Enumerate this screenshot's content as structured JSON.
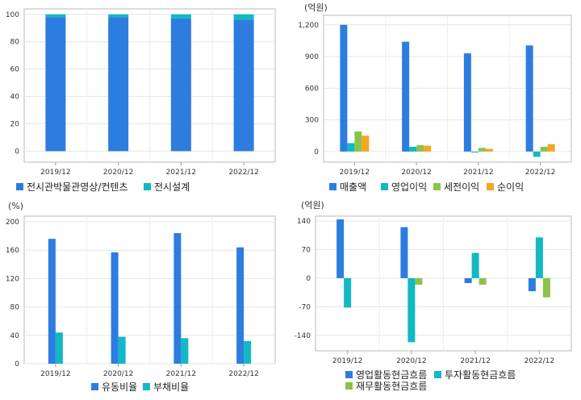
{
  "chart_data": [
    {
      "type": "bar",
      "stacked": true,
      "unit": "",
      "categories": [
        "2019/12",
        "2020/12",
        "2021/12",
        "2022/12"
      ],
      "yticks": [
        0,
        20,
        40,
        60,
        80,
        100
      ],
      "ylim": [
        -8,
        104
      ],
      "grid": true,
      "legend_position": "bottom",
      "series": [
        {
          "name": "전시관박물관영상/컨텐츠",
          "color": "#2d7de0",
          "values": [
            98,
            98,
            97,
            96
          ]
        },
        {
          "name": "전시설계",
          "color": "#12b8c4",
          "values": [
            2,
            2,
            3,
            4
          ]
        }
      ]
    },
    {
      "type": "bar",
      "unit": "(억원)",
      "categories": [
        "2019/12",
        "2020/12",
        "2021/12",
        "2022/12"
      ],
      "yticks": [
        0,
        300,
        600,
        900,
        1200
      ],
      "yticklabels": [
        "0",
        "300",
        "600",
        "900",
        "1,200"
      ],
      "ylim": [
        -100,
        1290
      ],
      "grid": true,
      "legend_position": "bottom",
      "series": [
        {
          "name": "매출액",
          "color": "#2d7de0",
          "values": [
            1200,
            1040,
            930,
            1005
          ]
        },
        {
          "name": "영업이익",
          "color": "#12b8c4",
          "values": [
            80,
            45,
            -10,
            -50
          ]
        },
        {
          "name": "세전이익",
          "color": "#8bc34a",
          "values": [
            190,
            60,
            35,
            45
          ]
        },
        {
          "name": "순이익",
          "color": "#f5a623",
          "values": [
            150,
            55,
            25,
            70
          ]
        }
      ]
    },
    {
      "type": "bar",
      "unit": "(%)",
      "categories": [
        "2019/12",
        "2020/12",
        "2021/12",
        "2022/12"
      ],
      "yticks": [
        0,
        40,
        80,
        120,
        160,
        200
      ],
      "ylim": [
        0,
        208
      ],
      "grid": true,
      "legend_position": "bottom",
      "series": [
        {
          "name": "유동비율",
          "color": "#2d7de0",
          "values": [
            176,
            157,
            184,
            164
          ]
        },
        {
          "name": "부채비율",
          "color": "#12b8c4",
          "values": [
            44,
            38,
            36,
            32
          ]
        }
      ]
    },
    {
      "type": "bar",
      "unit": "(억원)",
      "categories": [
        "2019/12",
        "2020/12",
        "2021/12",
        "2022/12"
      ],
      "yticks": [
        -140,
        -70,
        0,
        70,
        140
      ],
      "ylim": [
        -178,
        152
      ],
      "grid": true,
      "legend_position": "bottom",
      "series": [
        {
          "name": "영업활동현금흐름",
          "color": "#2d7de0",
          "values": [
            144,
            125,
            -12,
            -32
          ]
        },
        {
          "name": "투자활동현금흐름",
          "color": "#12b8c4",
          "values": [
            -72,
            -157,
            62,
            100
          ]
        },
        {
          "name": "재무활동현금흐름",
          "color": "#8bc34a",
          "values": [
            0,
            -16,
            -16,
            -47
          ]
        }
      ]
    }
  ]
}
